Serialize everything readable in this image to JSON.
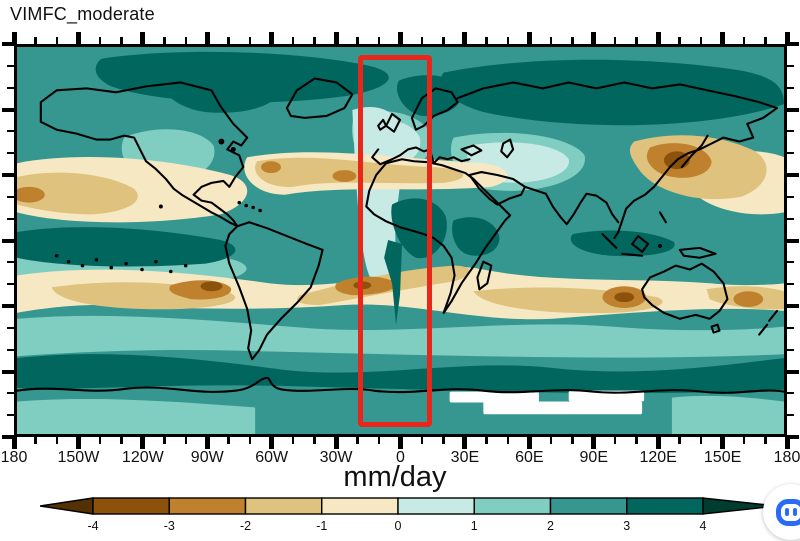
{
  "title": "VIMFC_moderate",
  "units_label": "mm/day",
  "axis": {
    "bottom_labels": [
      "180",
      "150W",
      "120W",
      "90W",
      "60W",
      "30W",
      "0",
      "30E",
      "60E",
      "90E",
      "120E",
      "150E",
      "180"
    ],
    "major_interval_deg": 30,
    "minor_interval_deg": 10
  },
  "colorbar": {
    "tick_labels": [
      "-4",
      "-3",
      "-2",
      "-1",
      "0",
      "1",
      "2",
      "3",
      "4"
    ],
    "colors": [
      "#543005",
      "#8c510a",
      "#bf812d",
      "#dfc27d",
      "#f6e8c3",
      "#c7eae5",
      "#80cdc1",
      "#35978f",
      "#01665e",
      "#003c30"
    ],
    "orientation": "horizontal"
  },
  "highlight_box": {
    "color": "#e8271a",
    "lon_range": [
      "20W",
      "15E"
    ],
    "lat_range": [
      "90S",
      "90N"
    ]
  },
  "overlay_icon": {
    "name": "assistant-extension-icon",
    "color": "#2a6bf5"
  },
  "chart_data": {
    "type": "heatmap",
    "subtype": "filled-contour world map",
    "title": "VIMFC_moderate",
    "colorbar_label": "mm/day",
    "contour_levels": [
      -4,
      -3,
      -2,
      -1,
      0,
      1,
      2,
      3,
      4
    ],
    "palette_colors": [
      "#543005",
      "#8c510a",
      "#bf812d",
      "#dfc27d",
      "#f6e8c3",
      "#c7eae5",
      "#80cdc1",
      "#35978f",
      "#01665e",
      "#003c30"
    ],
    "x_axis": {
      "label_ticks": [
        "180",
        "150W",
        "120W",
        "90W",
        "60W",
        "30W",
        "0",
        "30E",
        "60E",
        "90E",
        "120E",
        "150E",
        "180"
      ],
      "range_deg": [
        -180,
        180
      ],
      "major_tick_deg": 30,
      "minor_tick_deg": 10
    },
    "y_axis": {
      "range_deg": [
        -90,
        90
      ],
      "major_tick_deg": 30,
      "minor_tick_deg": 10,
      "labels_visible": false
    },
    "highlight_region": {
      "lon_min_deg": -20,
      "lon_max_deg": 15,
      "lat_min_deg": -90,
      "lat_max_deg": 90,
      "outline_color": "#e8271a"
    },
    "features": [
      {
        "region": "Arctic and Siberian high latitudes",
        "value_mm_day": "2 to 4 (teal)"
      },
      {
        "region": "Northern subtropical Pacific and Atlantic, Sahara-Mediterranean belt",
        "value_mm_day": "-1 to -3 (tan/brown)"
      },
      {
        "region": "East Asia / Japan",
        "value_mm_day": "-3 to -4 (dark brown core)"
      },
      {
        "region": "Europe and central Asia",
        "value_mm_day": "0 to 1 (pale)"
      },
      {
        "region": "Equatorial ITCZ across Pacific, Africa and Maritime Continent",
        "value_mm_day": "3 to >4 (dark teal)"
      },
      {
        "region": "Southern subtropical belt (S Pacific near Chile, S Atlantic to southern Africa, S Indian Ocean, flanks of Australia)",
        "value_mm_day": "-1 to -4 (tan with brown cores)"
      },
      {
        "region": "Southern Ocean storm track",
        "value_mm_day": "3 to 4 (dark teal band)"
      },
      {
        "region": "Near-Antarctic patches around 60E-110E",
        "value_mm_day": "missing / out of range (white)"
      }
    ],
    "grid": false,
    "legend_position": "bottom horizontal colorbar with triangular out-of-range ends"
  }
}
